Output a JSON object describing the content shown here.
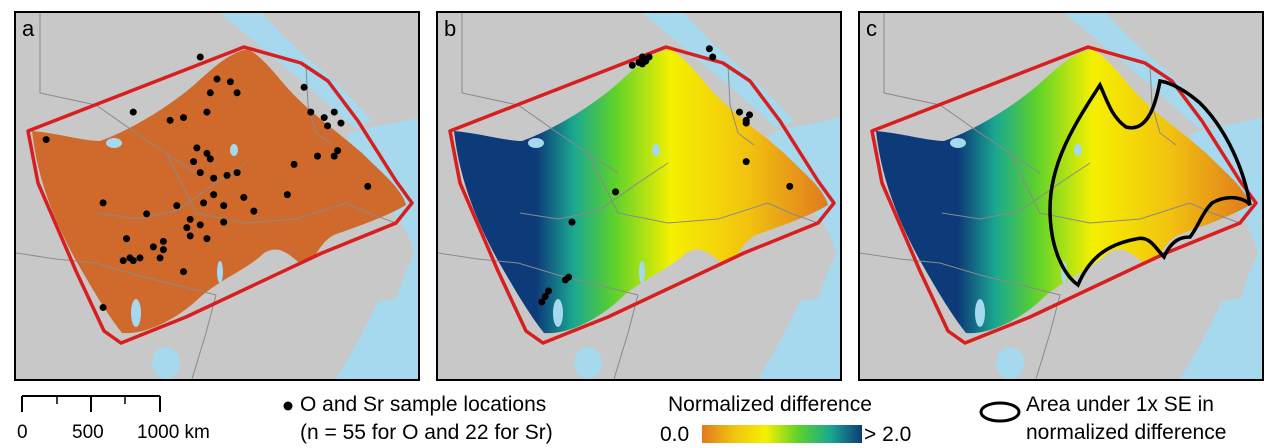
{
  "panels": [
    {
      "id": "a",
      "label": "a",
      "surface": "difference"
    },
    {
      "id": "b",
      "label": "b",
      "surface": "normalized"
    },
    {
      "id": "c",
      "label": "c",
      "surface": "normalized_se"
    }
  ],
  "colors": {
    "land": "#c8c8c8",
    "water": "#a6d8ee",
    "boundary": "#8a8a8a",
    "hull": "#d81e1e",
    "point": "#000000",
    "se_contour": "#000000",
    "colorbar": [
      "#e07a1f",
      "#f2c40f",
      "#f5f000",
      "#5ed22b",
      "#1aa890",
      "#0d3b7a"
    ],
    "difference_surface": "#cf6a2c"
  },
  "sample_locations": [
    {
      "lon": 33.7,
      "lat": 11.9
    },
    {
      "lon": 38.3,
      "lat": 14.9
    },
    {
      "lon": 38.8,
      "lat": 14.1
    },
    {
      "lon": 39.2,
      "lat": 14.0
    },
    {
      "lon": 39.4,
      "lat": 13.6
    },
    {
      "lon": 36.3,
      "lat": 12.9
    },
    {
      "lon": 37.4,
      "lat": 12.6
    },
    {
      "lon": 37.8,
      "lat": 12.7
    },
    {
      "lon": 38.5,
      "lat": 12.9
    },
    {
      "lon": 41.4,
      "lat": 13.8
    },
    {
      "lon": 41.6,
      "lat": 12.9
    },
    {
      "lon": 42.0,
      "lat": 12.7
    },
    {
      "lon": 42.3,
      "lat": 12.9
    },
    {
      "lon": 42.1,
      "lat": 12.4
    },
    {
      "lon": 42.5,
      "lat": 12.5
    },
    {
      "lon": 42.4,
      "lat": 11.5
    },
    {
      "lon": 42.3,
      "lat": 11.3
    },
    {
      "lon": 38.2,
      "lat": 11.6
    },
    {
      "lon": 38.1,
      "lat": 11.1
    },
    {
      "lon": 38.3,
      "lat": 10.7
    },
    {
      "lon": 38.7,
      "lat": 10.5
    },
    {
      "lon": 39.1,
      "lat": 10.6
    },
    {
      "lon": 39.4,
      "lat": 10.7
    },
    {
      "lon": 38.7,
      "lat": 9.9
    },
    {
      "lon": 38.4,
      "lat": 9.6
    },
    {
      "lon": 37.6,
      "lat": 9.5
    },
    {
      "lon": 39.9,
      "lat": 9.3
    },
    {
      "lon": 35.4,
      "lat": 9.6
    },
    {
      "lon": 36.7,
      "lat": 9.2
    },
    {
      "lon": 38.0,
      "lat": 9.0
    },
    {
      "lon": 37.9,
      "lat": 8.7
    },
    {
      "lon": 38.3,
      "lat": 8.8
    },
    {
      "lon": 36.1,
      "lat": 8.3
    },
    {
      "lon": 36.9,
      "lat": 8.0
    },
    {
      "lon": 37.2,
      "lat": 7.9
    },
    {
      "lon": 36.5,
      "lat": 7.6
    },
    {
      "lon": 36.3,
      "lat": 7.5
    },
    {
      "lon": 36.0,
      "lat": 7.5
    },
    {
      "lon": 37.8,
      "lat": 7.1
    },
    {
      "lon": 36.2,
      "lat": 7.6
    },
    {
      "lon": 35.4,
      "lat": 5.8
    },
    {
      "lon": 40.9,
      "lat": 9.9
    },
    {
      "lon": 41.1,
      "lat": 11.0
    },
    {
      "lon": 38.6,
      "lat": 11.2
    },
    {
      "lon": 39.0,
      "lat": 9.5
    },
    {
      "lon": 38.5,
      "lat": 11.4
    },
    {
      "lon": 37.2,
      "lat": 8.2
    },
    {
      "lon": 43.3,
      "lat": 10.2
    },
    {
      "lon": 38.0,
      "lat": 8.4
    },
    {
      "lon": 37.1,
      "lat": 7.6
    },
    {
      "lon": 39.6,
      "lat": 9.8
    },
    {
      "lon": 39.0,
      "lat": 8.9
    },
    {
      "lon": 38.5,
      "lat": 8.3
    },
    {
      "lon": 38.6,
      "lat": 13.6
    },
    {
      "lon": 41.8,
      "lat": 11.3
    }
  ],
  "sr_locations": [
    {
      "lon": 38.9,
      "lat": 14.9
    },
    {
      "lon": 38.9,
      "lat": 14.8
    },
    {
      "lon": 39.0,
      "lat": 14.75
    },
    {
      "lon": 39.1,
      "lat": 14.9
    },
    {
      "lon": 38.8,
      "lat": 14.7
    },
    {
      "lon": 38.9,
      "lat": 14.65
    },
    {
      "lon": 40.9,
      "lat": 15.2
    },
    {
      "lon": 41.0,
      "lat": 14.9
    },
    {
      "lon": 41.8,
      "lat": 12.9
    },
    {
      "lon": 42.1,
      "lat": 12.8
    },
    {
      "lon": 42.0,
      "lat": 12.6
    },
    {
      "lon": 42.0,
      "lat": 12.5
    },
    {
      "lon": 42.0,
      "lat": 11.1
    },
    {
      "lon": 43.3,
      "lat": 10.2
    },
    {
      "lon": 38.1,
      "lat": 10.0
    },
    {
      "lon": 36.8,
      "lat": 8.9
    },
    {
      "lon": 36.7,
      "lat": 6.9
    },
    {
      "lon": 36.6,
      "lat": 6.8
    },
    {
      "lon": 36.1,
      "lat": 6.4
    },
    {
      "lon": 36.0,
      "lat": 6.2
    },
    {
      "lon": 35.9,
      "lat": 6.0
    },
    {
      "lon": 38.6,
      "lat": 14.6
    }
  ],
  "legend": {
    "scale": {
      "ticks": [
        "0",
        "500",
        "1000 km"
      ]
    },
    "samples": {
      "line1": "O and Sr sample locations",
      "line2": "(n = 55 for O and 22 for Sr)"
    },
    "colorbar": {
      "title": "Normalized difference",
      "min_label": "0.0",
      "max_label": "> 2.0"
    },
    "se_area": {
      "line1": "Area under 1x SE in",
      "line2": "normalized difference"
    }
  }
}
